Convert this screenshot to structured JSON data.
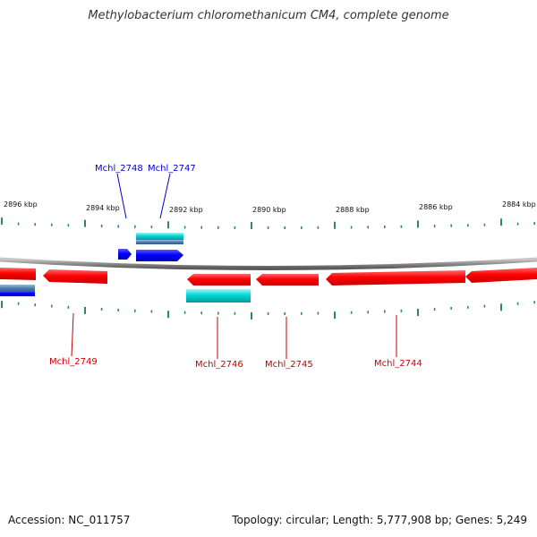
{
  "title": "Methylobacterium chloromethanicum CM4, complete genome",
  "footer": {
    "accession": "Accession: NC_011757",
    "stats": "Topology: circular; Length: 5,777,908 bp; Genes: 5,249"
  },
  "colors": {
    "forward_gene": "#0000ff",
    "reverse_gene": "#ff0000",
    "forward_rna_bar": "#00d6d6",
    "steel_bar": "#4f7fae",
    "tick": "#2e8b57",
    "backbone": "#8c8c8c",
    "forward_label": "#0000cc",
    "reverse_label": "#cc0000"
  },
  "scale": {
    "labels": [
      {
        "kbp": 2896,
        "text": "2896 kbp"
      },
      {
        "kbp": 2894,
        "text": "2894 kbp"
      },
      {
        "kbp": 2892,
        "text": "2892 kbp"
      },
      {
        "kbp": 2890,
        "text": "2890 kbp"
      },
      {
        "kbp": 2888,
        "text": "2888 kbp"
      },
      {
        "kbp": 2886,
        "text": "2886 kbp"
      },
      {
        "kbp": 2884,
        "text": "2884 kbp"
      }
    ]
  },
  "genes": [
    {
      "id": "Mchl_2748",
      "label": "Mchl_2748",
      "strand": "forward"
    },
    {
      "id": "Mchl_2747",
      "label": "Mchl_2747",
      "strand": "forward"
    },
    {
      "id": "Mchl_2749",
      "label": "Mchl_2749",
      "strand": "reverse"
    },
    {
      "id": "Mchl_2746",
      "label": "Mchl_2746",
      "strand": "reverse"
    },
    {
      "id": "Mchl_2745",
      "label": "Mchl_2745",
      "strand": "reverse"
    },
    {
      "id": "Mchl_2744",
      "label": "Mchl_2744",
      "strand": "reverse"
    }
  ]
}
